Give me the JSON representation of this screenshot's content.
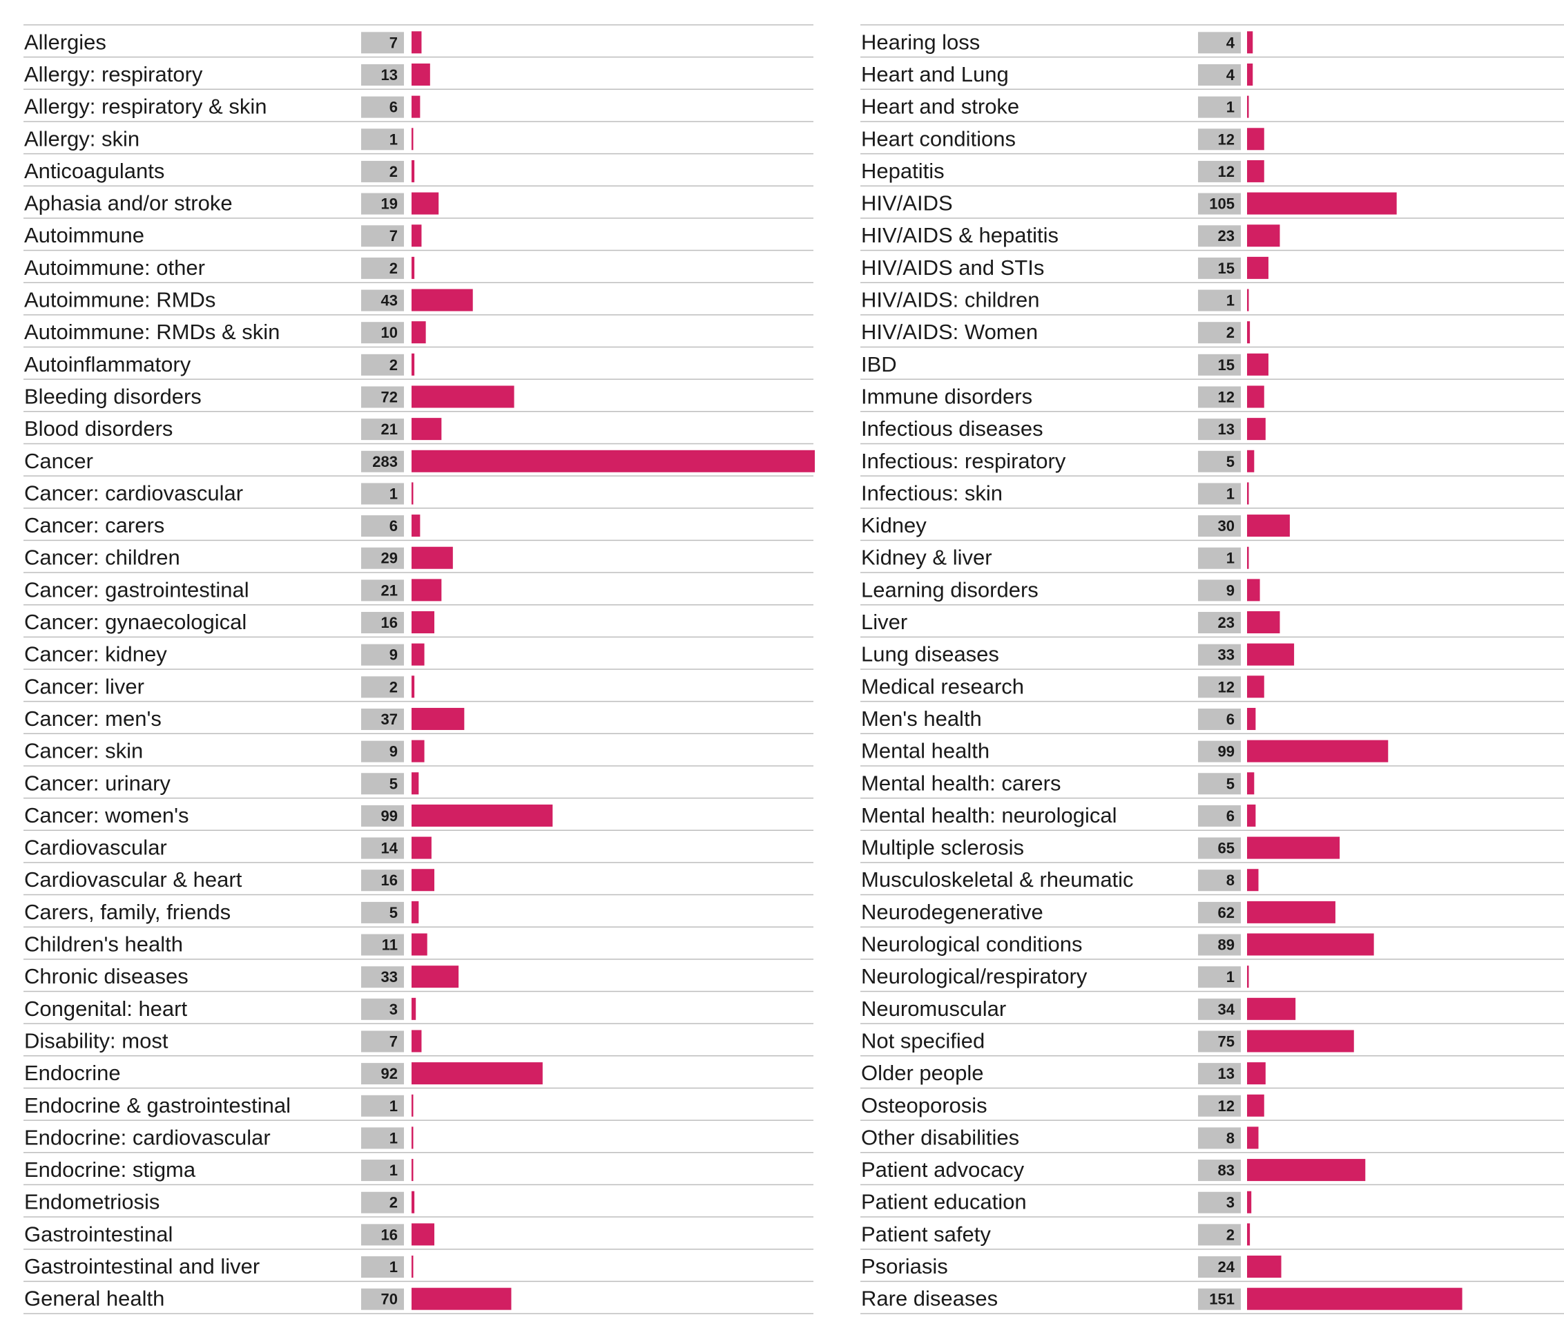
{
  "chart_data": [
    {
      "type": "bar",
      "orientation": "horizontal",
      "bar_color": "#d21f62",
      "value_box_color": "#c1c1c1",
      "xlim": [
        0,
        283
      ],
      "categories": [
        "Allergies",
        "Allergy: respiratory",
        "Allergy: respiratory & skin",
        "Allergy: skin",
        "Anticoagulants",
        "Aphasia and/or stroke",
        "Autoimmune",
        "Autoimmune: other",
        "Autoimmune: RMDs",
        "Autoimmune: RMDs & skin",
        "Autoinflammatory",
        "Bleeding disorders",
        "Blood disorders",
        "Cancer",
        "Cancer: cardiovascular",
        "Cancer: carers",
        "Cancer: children",
        "Cancer: gastrointestinal",
        "Cancer: gynaecological",
        "Cancer: kidney",
        "Cancer: liver",
        "Cancer: men's",
        "Cancer: skin",
        "Cancer: urinary",
        "Cancer: women's",
        "Cardiovascular",
        "Cardiovascular & heart",
        "Carers, family, friends",
        "Children's health",
        "Chronic diseases",
        "Congenital: heart",
        "Disability: most",
        "Endocrine",
        "Endocrine & gastrointestinal",
        "Endocrine: cardiovascular",
        "Endocrine: stigma",
        "Endometriosis",
        "Gastrointestinal",
        "Gastrointestinal and liver",
        "General health"
      ],
      "values": [
        7,
        13,
        6,
        1,
        2,
        19,
        7,
        2,
        43,
        10,
        2,
        72,
        21,
        283,
        1,
        6,
        29,
        21,
        16,
        9,
        2,
        37,
        9,
        5,
        99,
        14,
        16,
        5,
        11,
        33,
        3,
        7,
        92,
        1,
        1,
        1,
        2,
        16,
        1,
        70
      ]
    },
    {
      "type": "bar",
      "orientation": "horizontal",
      "bar_color": "#d21f62",
      "value_box_color": "#c1c1c1",
      "xlim": [
        0,
        283
      ],
      "categories": [
        "Hearing loss",
        "Heart and Lung",
        "Heart and stroke",
        "Heart conditions",
        "Hepatitis",
        "HIV/AIDS",
        "HIV/AIDS & hepatitis",
        "HIV/AIDS and STIs",
        "HIV/AIDS: children",
        "HIV/AIDS: Women",
        "IBD",
        "Immune disorders",
        "Infectious diseases",
        "Infectious: respiratory",
        "Infectious: skin",
        "Kidney",
        "Kidney & liver",
        "Learning disorders",
        "Liver",
        "Lung diseases",
        "Medical research",
        "Men's health",
        "Mental health",
        "Mental health: carers",
        "Mental health: neurological",
        "Multiple sclerosis",
        "Musculoskeletal & rheumatic",
        "Neurodegenerative",
        "Neurological conditions",
        "Neurological/respiratory",
        "Neuromuscular",
        "Not specified",
        "Older people",
        "Osteoporosis",
        "Other disabilities",
        "Patient advocacy",
        "Patient education",
        "Patient safety",
        "Psoriasis",
        "Rare diseases"
      ],
      "values": [
        4,
        4,
        1,
        12,
        12,
        105,
        23,
        15,
        1,
        2,
        15,
        12,
        13,
        5,
        1,
        30,
        1,
        9,
        23,
        33,
        12,
        6,
        99,
        5,
        6,
        65,
        8,
        62,
        89,
        1,
        34,
        75,
        13,
        12,
        8,
        83,
        3,
        2,
        24,
        151
      ]
    }
  ]
}
